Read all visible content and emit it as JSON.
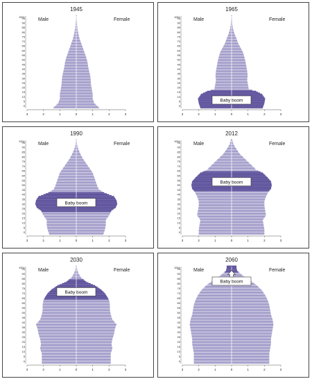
{
  "chart_data": [
    {
      "type": "bar",
      "title": "1945",
      "male_label": "Male",
      "female_label": "Female",
      "age_top_label": "100+",
      "age_ticks": [
        0,
        5,
        10,
        15,
        20,
        25,
        30,
        35,
        40,
        45,
        50,
        55,
        60,
        65,
        70,
        75,
        80,
        85,
        90,
        95
      ],
      "x_ticks": [
        3,
        2,
        1,
        0,
        1,
        2,
        3
      ],
      "xlim": [
        -3,
        3
      ],
      "profile": [
        [
          0,
          1.4
        ],
        [
          5,
          1.1
        ],
        [
          10,
          1.0
        ],
        [
          15,
          1.0
        ],
        [
          20,
          0.95
        ],
        [
          25,
          0.9
        ],
        [
          30,
          0.88
        ],
        [
          35,
          0.85
        ],
        [
          40,
          0.78
        ],
        [
          45,
          0.72
        ],
        [
          50,
          0.68
        ],
        [
          55,
          0.6
        ],
        [
          60,
          0.5
        ],
        [
          65,
          0.4
        ],
        [
          70,
          0.3
        ],
        [
          75,
          0.2
        ],
        [
          80,
          0.13
        ],
        [
          85,
          0.08
        ],
        [
          90,
          0.05
        ],
        [
          95,
          0.03
        ],
        [
          100,
          0.02
        ]
      ]
    },
    {
      "type": "bar",
      "title": "1965",
      "male_label": "Male",
      "female_label": "Female",
      "age_top_label": "100+",
      "age_ticks": [
        0,
        5,
        10,
        15,
        20,
        25,
        30,
        35,
        40,
        45,
        50,
        55,
        60,
        65,
        70,
        75,
        80,
        85,
        90,
        95
      ],
      "x_ticks": [
        3,
        2,
        1,
        0,
        1,
        2,
        3
      ],
      "xlim": [
        -3,
        3
      ],
      "profile": [
        [
          0,
          1.9
        ],
        [
          5,
          2.0
        ],
        [
          10,
          2.05
        ],
        [
          15,
          1.85
        ],
        [
          18,
          1.5
        ],
        [
          20,
          1.05
        ],
        [
          25,
          1.0
        ],
        [
          30,
          0.95
        ],
        [
          35,
          0.98
        ],
        [
          40,
          0.95
        ],
        [
          45,
          0.9
        ],
        [
          50,
          0.85
        ],
        [
          55,
          0.78
        ],
        [
          60,
          0.7
        ],
        [
          65,
          0.55
        ],
        [
          70,
          0.4
        ],
        [
          75,
          0.3
        ],
        [
          80,
          0.18
        ],
        [
          85,
          0.1
        ],
        [
          90,
          0.05
        ],
        [
          95,
          0.03
        ],
        [
          100,
          0.02
        ]
      ],
      "boom_range": [
        0,
        19
      ],
      "annotation": "Baby boom",
      "annotation_age": 9
    },
    {
      "type": "bar",
      "title": "1990",
      "male_label": "Male",
      "female_label": "Female",
      "age_top_label": "100+",
      "age_ticks": [
        0,
        5,
        10,
        15,
        20,
        25,
        30,
        35,
        40,
        45,
        50,
        55,
        60,
        65,
        70,
        75,
        80,
        85,
        90,
        95
      ],
      "x_ticks": [
        3,
        2,
        1,
        0,
        1,
        2,
        3
      ],
      "xlim": [
        -3,
        3
      ],
      "profile": [
        [
          0,
          1.65
        ],
        [
          5,
          1.75
        ],
        [
          10,
          1.8
        ],
        [
          15,
          1.8
        ],
        [
          20,
          2.0
        ],
        [
          25,
          2.15
        ],
        [
          28,
          2.4
        ],
        [
          32,
          2.5
        ],
        [
          36,
          2.45
        ],
        [
          40,
          2.3
        ],
        [
          44,
          1.7
        ],
        [
          47,
          1.4
        ],
        [
          50,
          1.3
        ],
        [
          55,
          1.2
        ],
        [
          60,
          1.1
        ],
        [
          65,
          1.0
        ],
        [
          70,
          0.8
        ],
        [
          75,
          0.6
        ],
        [
          80,
          0.4
        ],
        [
          85,
          0.25
        ],
        [
          90,
          0.12
        ],
        [
          95,
          0.05
        ],
        [
          100,
          0.02
        ]
      ],
      "boom_range": [
        24,
        44
      ],
      "annotation": "Baby boom",
      "annotation_age": 34
    },
    {
      "type": "bar",
      "title": "2012",
      "male_label": "Male",
      "female_label": "Female",
      "age_top_label": "100+",
      "age_ticks": [
        0,
        5,
        10,
        15,
        20,
        25,
        30,
        35,
        40,
        45,
        50,
        55,
        60,
        65,
        70,
        75,
        80,
        85,
        90,
        95
      ],
      "x_ticks": [
        3,
        2,
        1,
        0,
        1,
        2,
        3
      ],
      "xlim": [
        -3,
        3
      ],
      "profile": [
        [
          0,
          2.0
        ],
        [
          5,
          2.0
        ],
        [
          10,
          1.95
        ],
        [
          15,
          1.9
        ],
        [
          20,
          2.1
        ],
        [
          25,
          2.05
        ],
        [
          30,
          2.0
        ],
        [
          35,
          2.0
        ],
        [
          40,
          2.1
        ],
        [
          45,
          2.25
        ],
        [
          48,
          2.4
        ],
        [
          52,
          2.45
        ],
        [
          56,
          2.4
        ],
        [
          60,
          2.2
        ],
        [
          65,
          1.9
        ],
        [
          68,
          1.5
        ],
        [
          70,
          1.4
        ],
        [
          75,
          1.1
        ],
        [
          80,
          0.8
        ],
        [
          85,
          0.5
        ],
        [
          90,
          0.3
        ],
        [
          95,
          0.12
        ],
        [
          100,
          0.04
        ]
      ],
      "boom_range": [
        46,
        66
      ],
      "annotation": "Baby boom",
      "annotation_age": 56
    },
    {
      "type": "bar",
      "title": "2030",
      "male_label": "Male",
      "female_label": "Female",
      "age_top_label": "100+",
      "age_ticks": [
        0,
        5,
        10,
        15,
        20,
        25,
        30,
        35,
        40,
        45,
        50,
        55,
        60,
        65,
        70,
        75,
        80,
        85,
        90,
        95
      ],
      "x_ticks": [
        3,
        2,
        1,
        0,
        1,
        2,
        3
      ],
      "xlim": [
        -3,
        3
      ],
      "profile": [
        [
          0,
          2.1
        ],
        [
          5,
          2.1
        ],
        [
          10,
          2.1
        ],
        [
          15,
          2.2
        ],
        [
          20,
          2.15
        ],
        [
          25,
          2.2
        ],
        [
          30,
          2.3
        ],
        [
          35,
          2.35
        ],
        [
          40,
          2.45
        ],
        [
          45,
          2.2
        ],
        [
          50,
          2.1
        ],
        [
          55,
          2.05
        ],
        [
          60,
          2.05
        ],
        [
          65,
          2.0
        ],
        [
          68,
          1.9
        ],
        [
          72,
          1.75
        ],
        [
          76,
          1.5
        ],
        [
          80,
          1.15
        ],
        [
          84,
          0.6
        ],
        [
          88,
          0.3
        ],
        [
          92,
          0.15
        ],
        [
          96,
          0.06
        ],
        [
          100,
          0.02
        ]
      ],
      "boom_range": [
        66,
        86
      ],
      "annotation": "Baby boom",
      "annotation_age": 74
    },
    {
      "type": "bar",
      "title": "2060",
      "male_label": "Male",
      "female_label": "Female",
      "age_top_label": "100+",
      "age_ticks": [
        0,
        5,
        10,
        15,
        20,
        25,
        30,
        35,
        40,
        45,
        50,
        55,
        60,
        65,
        70,
        75,
        80,
        85,
        90,
        95
      ],
      "x_ticks": [
        3,
        2,
        1,
        0,
        1,
        2,
        3
      ],
      "xlim": [
        -3,
        3
      ],
      "profile": [
        [
          0,
          2.3
        ],
        [
          5,
          2.3
        ],
        [
          10,
          2.3
        ],
        [
          15,
          2.35
        ],
        [
          20,
          2.4
        ],
        [
          25,
          2.4
        ],
        [
          30,
          2.45
        ],
        [
          35,
          2.5
        ],
        [
          40,
          2.55
        ],
        [
          45,
          2.5
        ],
        [
          50,
          2.4
        ],
        [
          55,
          2.35
        ],
        [
          60,
          2.3
        ],
        [
          65,
          2.2
        ],
        [
          70,
          2.05
        ],
        [
          75,
          1.85
        ],
        [
          80,
          1.55
        ],
        [
          85,
          1.15
        ],
        [
          90,
          0.7
        ],
        [
          95,
          0.35
        ],
        [
          98,
          0.3
        ],
        [
          100,
          0.3
        ]
      ],
      "boom_range": [
        94,
        100
      ],
      "annotation": "Baby boom",
      "annotation_age": 85,
      "arrow": true
    }
  ]
}
